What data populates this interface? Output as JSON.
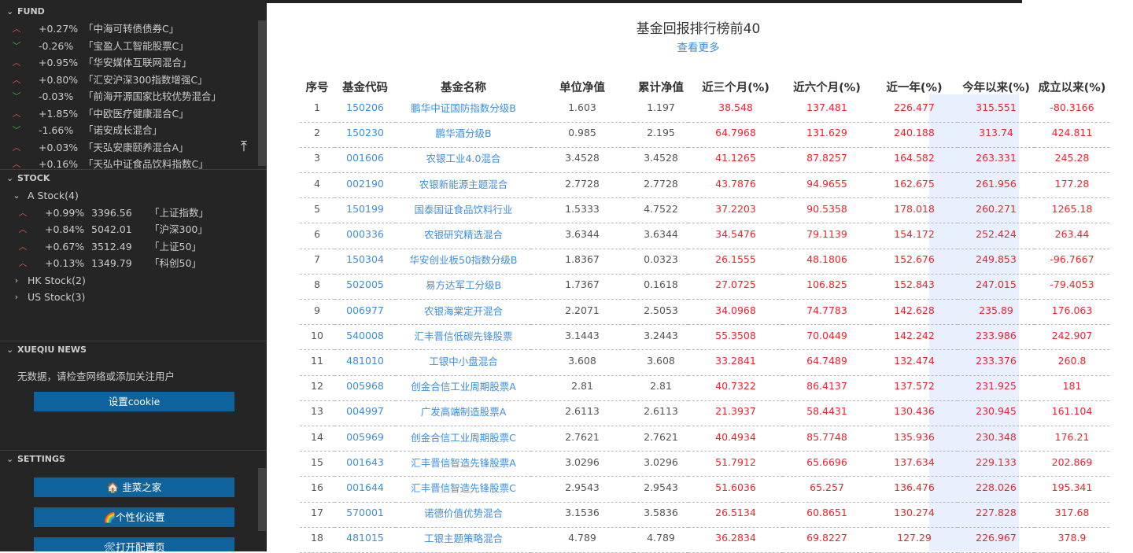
{
  "sidebar": {
    "fund": {
      "title": "FUND",
      "items": [
        {
          "dir": "up",
          "pct": "+0.27%",
          "name": "「中海可转债债券C」"
        },
        {
          "dir": "down",
          "pct": "-0.26%",
          "name": "「宝盈人工智能股票C」"
        },
        {
          "dir": "up",
          "pct": "+0.95%",
          "name": "「华安媒体互联网混合」"
        },
        {
          "dir": "up",
          "pct": "+0.80%",
          "name": "「汇安沪深300指数增强C」"
        },
        {
          "dir": "down",
          "pct": "-0.03%",
          "name": "「前海开源国家比较优势混合」"
        },
        {
          "dir": "up",
          "pct": "+1.85%",
          "name": "「中欧医疗健康混合C」"
        },
        {
          "dir": "down",
          "pct": "-1.66%",
          "name": "「诺安成长混合」"
        },
        {
          "dir": "up",
          "pct": "+0.03%",
          "name": "「天弘安康颐养混合A」"
        },
        {
          "dir": "up",
          "pct": "+0.16%",
          "name": "「天弘中证食品饮料指数C」"
        }
      ]
    },
    "stock": {
      "title": "STOCK",
      "groups": [
        {
          "label": "A Stock(4)",
          "expanded": true,
          "items": [
            {
              "dir": "up",
              "pct": "+0.99%",
              "price": "3396.56",
              "name": "「上证指数」"
            },
            {
              "dir": "up",
              "pct": "+0.84%",
              "price": "5042.01",
              "name": "「沪深300」"
            },
            {
              "dir": "up",
              "pct": "+0.67%",
              "price": "3512.49",
              "name": "「上证50」"
            },
            {
              "dir": "up",
              "pct": "+0.13%",
              "price": "1349.79",
              "name": "「科创50」"
            }
          ]
        },
        {
          "label": "HK Stock(2)",
          "expanded": false
        },
        {
          "label": "US Stock(3)",
          "expanded": false
        }
      ]
    },
    "news": {
      "title": "XUEQIU NEWS",
      "empty_text": "无数据，请检查网络或添加关注用户",
      "cookie_button": "设置cookie"
    },
    "settings": {
      "title": "SETTINGS",
      "buttons": [
        "🏠 韭菜之家",
        "🌈个性化设置",
        "🛠打开配置页"
      ]
    }
  },
  "main": {
    "title": "基金回报排行榜前40",
    "more_link": "查看更多",
    "columns": [
      "序号",
      "基金代码",
      "基金名称",
      "单位净值",
      "累计净值",
      "近三个月(%)",
      "近六个月(%)",
      "近一年(%)",
      "今年以来(%)",
      "成立以来(%)"
    ],
    "rows": [
      [
        "1",
        "150206",
        "鹏华中证国防指数分级B",
        "1.603",
        "1.197",
        "38.548",
        "137.481",
        "226.477",
        "315.551",
        "-80.3166"
      ],
      [
        "2",
        "150230",
        "鹏华酒分级B",
        "0.985",
        "2.195",
        "64.7968",
        "131.629",
        "240.188",
        "313.74",
        "424.811"
      ],
      [
        "3",
        "001606",
        "农银工业4.0混合",
        "3.4528",
        "3.4528",
        "41.1265",
        "87.8257",
        "164.582",
        "263.331",
        "245.28"
      ],
      [
        "4",
        "002190",
        "农银新能源主题混合",
        "2.7728",
        "2.7728",
        "43.7876",
        "94.9655",
        "162.675",
        "261.956",
        "177.28"
      ],
      [
        "5",
        "150199",
        "国泰国证食品饮料行业",
        "1.5333",
        "4.7522",
        "37.2203",
        "90.5358",
        "178.018",
        "260.271",
        "1265.18"
      ],
      [
        "6",
        "000336",
        "农银研究精选混合",
        "3.6344",
        "3.6344",
        "34.5476",
        "79.1139",
        "154.172",
        "252.424",
        "263.44"
      ],
      [
        "7",
        "150304",
        "华安创业板50指数分级B",
        "1.8367",
        "0.0323",
        "26.1555",
        "48.1806",
        "152.676",
        "249.853",
        "-96.7667"
      ],
      [
        "8",
        "502005",
        "易方达军工分级B",
        "1.7367",
        "0.1618",
        "27.0725",
        "106.825",
        "152.843",
        "247.015",
        "-79.4053"
      ],
      [
        "9",
        "006977",
        "农银海棠定开混合",
        "2.2071",
        "2.5053",
        "34.0968",
        "74.7783",
        "142.628",
        "235.89",
        "176.063"
      ],
      [
        "10",
        "540008",
        "汇丰晋信低碳先锋股票",
        "3.1443",
        "3.2443",
        "55.3508",
        "70.0449",
        "142.242",
        "233.986",
        "242.907"
      ],
      [
        "11",
        "481010",
        "工银中小盘混合",
        "3.608",
        "3.608",
        "33.2841",
        "64.7489",
        "132.474",
        "233.376",
        "260.8"
      ],
      [
        "12",
        "005968",
        "创金合信工业周期股票A",
        "2.81",
        "2.81",
        "40.7322",
        "86.4137",
        "137.572",
        "231.925",
        "181"
      ],
      [
        "13",
        "004997",
        "广发高端制造股票A",
        "2.6113",
        "2.6113",
        "21.3937",
        "58.4431",
        "130.436",
        "230.945",
        "161.104"
      ],
      [
        "14",
        "005969",
        "创金合信工业周期股票C",
        "2.7621",
        "2.7621",
        "40.4934",
        "85.7748",
        "135.936",
        "230.348",
        "176.21"
      ],
      [
        "15",
        "001643",
        "汇丰晋信智造先锋股票A",
        "3.0296",
        "3.0296",
        "51.7912",
        "65.6696",
        "137.634",
        "229.133",
        "202.869"
      ],
      [
        "16",
        "001644",
        "汇丰晋信智造先锋股票C",
        "2.9543",
        "2.9543",
        "51.6036",
        "65.257",
        "136.476",
        "228.026",
        "195.341"
      ],
      [
        "17",
        "570001",
        "诺德价值优势混合",
        "3.1536",
        "3.5836",
        "26.5134",
        "60.8651",
        "130.274",
        "227.828",
        "317.68"
      ],
      [
        "18",
        "481015",
        "工银主题策略混合",
        "4.789",
        "4.789",
        "36.2834",
        "69.8227",
        "127.29",
        "226.967",
        "378.9"
      ]
    ],
    "highlight_column": "今年以来(%)",
    "colors": {
      "link": "#3b8ee6",
      "positive": "#f5222d",
      "highlight_bg": "#e8f0fe",
      "button": "#0e639c",
      "sidebar_bg": "#252526"
    }
  }
}
